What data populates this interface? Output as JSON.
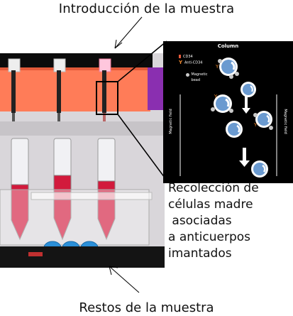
{
  "top_label": "Introducción de la muestra",
  "bottom_label": "Restos de la muestra",
  "collection_text": "Recolección de\ncélulas madre\n asociadas\na anticuerpos\nimantados",
  "inset": {
    "title": "Column",
    "legend": [
      {
        "label": "CD34",
        "icon": "cd34-marker-icon",
        "color": "#e65a3a"
      },
      {
        "label": "Anti-CD34",
        "icon": "anti-cd34-antibody-icon",
        "color": "#f08a30"
      },
      {
        "label": "Magnetic\nbead",
        "icon": "magnetic-bead-icon",
        "color": "#c9c9c9"
      }
    ],
    "field_left": "Magnetic field",
    "field_right": "Magnetic field"
  },
  "colors": {
    "sample": "#d21a3c",
    "holder": "#ff7f5a",
    "cap": "#2b8fd8",
    "cell": "#6a9ad0"
  }
}
